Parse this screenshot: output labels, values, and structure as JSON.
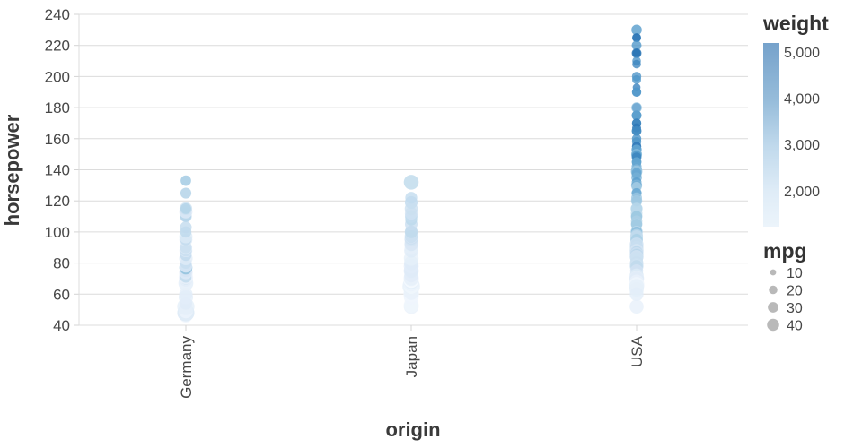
{
  "chart_data": {
    "type": "scatter",
    "title": "",
    "x": {
      "label": "origin",
      "categories": [
        "Germany",
        "Japan",
        "USA"
      ]
    },
    "y": {
      "label": "horsepower",
      "domain": [
        40,
        240
      ],
      "tick_step": 20,
      "tick_labels": [
        "40",
        "60",
        "80",
        "100",
        "120",
        "140",
        "160",
        "180",
        "200",
        "220",
        "240"
      ]
    },
    "color_legend": {
      "title": "weight",
      "tick_labels": [
        "5,000",
        "4,000",
        "3,000",
        "2,000"
      ],
      "tick_values": [
        5000,
        4000,
        3000,
        2000
      ],
      "gradient_top_color": "#76a2cb",
      "gradient_stops": [
        {
          "t": 0.0,
          "color": "#76a2cb"
        },
        {
          "t": 0.31,
          "color": "#96bcda"
        },
        {
          "t": 0.56,
          "color": "#c0d9ec"
        },
        {
          "t": 0.81,
          "color": "#dfecf7"
        },
        {
          "t": 1.0,
          "color": "#ecf4fb"
        }
      ],
      "domain": [
        1600,
        5150
      ]
    },
    "size_legend": {
      "title": "mpg",
      "values": [
        10,
        20,
        30,
        40
      ],
      "labels": [
        "10",
        "20",
        "30",
        "40"
      ],
      "circle_color": "#b9b9b9"
    },
    "point_style": {
      "color_stops": [
        "#f7fbff",
        "#d6e5f4",
        "#9ec9e2",
        "#539bcc",
        "#1b67ad"
      ],
      "opacity": 0.78,
      "grid_color": "#dcdcdc",
      "label_color": "#474747",
      "title_color": "#3a3a3a"
    },
    "points": {
      "Germany": [
        [
          46,
          1835,
          26
        ],
        [
          48,
          1978,
          43.1
        ],
        [
          48,
          2335,
          43.4
        ],
        [
          49,
          1867,
          29
        ],
        [
          52,
          2130,
          44.3
        ],
        [
          54,
          2254,
          23
        ],
        [
          58,
          2155,
          30.5
        ],
        [
          60,
          2164,
          26.5
        ],
        [
          67,
          1963,
          31.5
        ],
        [
          67,
          2050,
          33
        ],
        [
          69,
          2189,
          24
        ],
        [
          70,
          2120,
          29.5
        ],
        [
          70,
          2937,
          20.3
        ],
        [
          71,
          1825,
          31
        ],
        [
          71,
          2868,
          19
        ],
        [
          74,
          2246,
          27.2
        ],
        [
          75,
          2542,
          22.3
        ],
        [
          76,
          2511,
          22
        ],
        [
          76,
          3160,
          17
        ],
        [
          77,
          3530,
          25.4
        ],
        [
          78,
          2188,
          24.5
        ],
        [
          78,
          2515,
          21.5
        ],
        [
          80,
          2720,
          19.4
        ],
        [
          83,
          2219,
          27
        ],
        [
          85,
          2855,
          19
        ],
        [
          88,
          2160,
          25
        ],
        [
          88,
          2740,
          21
        ],
        [
          90,
          2123,
          24
        ],
        [
          90,
          2711,
          20.3
        ],
        [
          95,
          2375,
          25
        ],
        [
          95,
          2833,
          18.5
        ],
        [
          97,
          2300,
          26
        ],
        [
          100,
          2901,
          18.5
        ],
        [
          103,
          2830,
          20.3
        ],
        [
          110,
          2600,
          21.5
        ],
        [
          110,
          3100,
          18
        ],
        [
          112,
          2933,
          19
        ],
        [
          113,
          2234,
          26
        ],
        [
          115,
          2671,
          23.9
        ],
        [
          115,
          3090,
          17
        ],
        [
          125,
          3140,
          17.6
        ],
        [
          133,
          3410,
          16.2
        ]
      ],
      "Japan": [
        [
          52,
          1985,
          32.8
        ],
        [
          53,
          1795,
          33
        ],
        [
          58,
          1836,
          32
        ],
        [
          60,
          1800,
          36.1
        ],
        [
          61,
          2003,
          32
        ],
        [
          65,
          1975,
          46.6
        ],
        [
          65,
          2019,
          36
        ],
        [
          65,
          1773,
          33
        ],
        [
          67,
          1965,
          38
        ],
        [
          67,
          2145,
          32
        ],
        [
          67,
          1850,
          33.5
        ],
        [
          68,
          2135,
          31.8
        ],
        [
          69,
          1613,
          35.1
        ],
        [
          70,
          1945,
          33.5
        ],
        [
          70,
          2074,
          29
        ],
        [
          71,
          1990,
          31.9
        ],
        [
          72,
          2189,
          28
        ],
        [
          75,
          2155,
          33.5
        ],
        [
          75,
          2171,
          29.5
        ],
        [
          75,
          2265,
          28
        ],
        [
          78,
          2190,
          32.8
        ],
        [
          80,
          2263,
          30
        ],
        [
          83,
          2075,
          32
        ],
        [
          88,
          2279,
          29
        ],
        [
          90,
          2123,
          26
        ],
        [
          92,
          2288,
          27.2
        ],
        [
          92,
          2434,
          24.2
        ],
        [
          93,
          2391,
          25.4
        ],
        [
          95,
          2228,
          25
        ],
        [
          95,
          2372,
          24
        ],
        [
          95,
          2515,
          26
        ],
        [
          96,
          2665,
          25.8
        ],
        [
          97,
          2190,
          27
        ],
        [
          97,
          2720,
          23.9
        ],
        [
          100,
          2615,
          25
        ],
        [
          100,
          2870,
          23
        ],
        [
          105,
          2745,
          23.2
        ],
        [
          108,
          2910,
          21.5
        ],
        [
          110,
          2660,
          23
        ],
        [
          110,
          2807,
          21
        ],
        [
          112,
          2605,
          24
        ],
        [
          115,
          2671,
          25
        ],
        [
          119,
          2615,
          22.5
        ],
        [
          119,
          2720,
          23.9
        ],
        [
          122,
          2807,
          21
        ],
        [
          132,
          2910,
          32.7
        ]
      ],
      "USA": [
        [
          230,
          4278,
          16
        ],
        [
          225,
          4425,
          12
        ],
        [
          225,
          4997,
          11
        ],
        [
          220,
          4354,
          14
        ],
        [
          215,
          4615,
          10
        ],
        [
          215,
          4735,
          11
        ],
        [
          215,
          4951,
          14
        ],
        [
          210,
          4382,
          11
        ],
        [
          208,
          4633,
          11
        ],
        [
          200,
          4376,
          13
        ],
        [
          198,
          4341,
          12
        ],
        [
          193,
          4732,
          9
        ],
        [
          190,
          4422,
          13
        ],
        [
          190,
          4325,
          12
        ],
        [
          180,
          4499,
          12.5
        ],
        [
          180,
          4955,
          12
        ],
        [
          180,
          3664,
          16
        ],
        [
          175,
          4385,
          13
        ],
        [
          175,
          4464,
          14
        ],
        [
          175,
          4100,
          14
        ],
        [
          170,
          4746,
          13
        ],
        [
          170,
          4668,
          12
        ],
        [
          167,
          4906,
          12
        ],
        [
          165,
          4274,
          13
        ],
        [
          165,
          4658,
          14
        ],
        [
          160,
          4456,
          13
        ],
        [
          158,
          4363,
          13
        ],
        [
          155,
          4502,
          12.5
        ],
        [
          155,
          4840,
          13
        ],
        [
          153,
          4034,
          14
        ],
        [
          153,
          4129,
          15
        ],
        [
          150,
          4997,
          14
        ],
        [
          150,
          4464,
          13
        ],
        [
          150,
          4077,
          13
        ],
        [
          150,
          3777,
          14
        ],
        [
          150,
          4135,
          15
        ],
        [
          150,
          4096,
          13
        ],
        [
          150,
          3433,
          17.5
        ],
        [
          150,
          3892,
          15
        ],
        [
          149,
          4335,
          14
        ],
        [
          148,
          4657,
          14
        ],
        [
          145,
          4440,
          13
        ],
        [
          145,
          3988,
          14
        ],
        [
          145,
          4082,
          13
        ],
        [
          142,
          4054,
          14.5
        ],
        [
          140,
          4080,
          13
        ],
        [
          140,
          3449,
          17
        ],
        [
          140,
          4215,
          15
        ],
        [
          140,
          3735,
          16
        ],
        [
          139,
          3205,
          20.2
        ],
        [
          139,
          3570,
          17
        ],
        [
          138,
          4080,
          14
        ],
        [
          137,
          4042,
          14
        ],
        [
          135,
          3870,
          16
        ],
        [
          132,
          4209,
          14
        ],
        [
          130,
          3504,
          18
        ],
        [
          130,
          4098,
          15
        ],
        [
          130,
          3840,
          15
        ],
        [
          129,
          3169,
          15
        ],
        [
          125,
          3900,
          14
        ],
        [
          125,
          3988,
          15
        ],
        [
          122,
          3410,
          17
        ],
        [
          120,
          3820,
          15
        ],
        [
          120,
          3270,
          18.5
        ],
        [
          115,
          3245,
          19
        ],
        [
          115,
          2945,
          21
        ],
        [
          112,
          2933,
          19.5
        ],
        [
          110,
          3907,
          16.9
        ],
        [
          110,
          3730,
          17
        ],
        [
          110,
          3039,
          18.5
        ],
        [
          110,
          2725,
          20
        ],
        [
          110,
          3360,
          17.5
        ],
        [
          110,
          3381,
          18
        ],
        [
          107,
          3160,
          19
        ],
        [
          105,
          3613,
          16
        ],
        [
          105,
          3459,
          16
        ],
        [
          105,
          2945,
          20
        ],
        [
          105,
          3380,
          17.6
        ],
        [
          100,
          3288,
          18
        ],
        [
          100,
          3282,
          19
        ],
        [
          100,
          2789,
          22
        ],
        [
          100,
          3012,
          20.5
        ],
        [
          100,
          3336,
          19
        ],
        [
          100,
          2901,
          21
        ],
        [
          100,
          3651,
          17.5
        ],
        [
          98,
          2945,
          22
        ],
        [
          97,
          2774,
          24
        ],
        [
          95,
          3155,
          18.2
        ],
        [
          95,
          2945,
          22.5
        ],
        [
          95,
          2875,
          23
        ],
        [
          95,
          3193,
          20.2
        ],
        [
          94,
          3102,
          19.8
        ],
        [
          92,
          3288,
          21
        ],
        [
          92,
          2605,
          28
        ],
        [
          90,
          3211,
          21
        ],
        [
          90,
          2950,
          24.5
        ],
        [
          90,
          2957,
          22
        ],
        [
          90,
          3003,
          20.6
        ],
        [
          90,
          2678,
          26.8
        ],
        [
          90,
          2711,
          24.3
        ],
        [
          88,
          3060,
          21
        ],
        [
          88,
          2890,
          22
        ],
        [
          88,
          2720,
          25.1
        ],
        [
          88,
          2605,
          28.1
        ],
        [
          88,
          2640,
          27
        ],
        [
          88,
          3021,
          20
        ],
        [
          88,
          2451,
          26
        ],
        [
          87,
          2979,
          21
        ],
        [
          86,
          2790,
          27
        ],
        [
          86,
          2587,
          24
        ],
        [
          85,
          2855,
          27
        ],
        [
          85,
          3070,
          21.1
        ],
        [
          85,
          2965,
          20.5
        ],
        [
          84,
          2490,
          26.6
        ],
        [
          84,
          2635,
          28
        ],
        [
          83,
          2639,
          23.8
        ],
        [
          80,
          2720,
          24
        ],
        [
          80,
          2678,
          27
        ],
        [
          79,
          2625,
          26
        ],
        [
          78,
          2592,
          28
        ],
        [
          78,
          2875,
          22
        ],
        [
          75,
          2542,
          25
        ],
        [
          72,
          2408,
          26
        ],
        [
          72,
          2298,
          29
        ],
        [
          70,
          2120,
          28
        ],
        [
          70,
          2200,
          31
        ],
        [
          70,
          1955,
          33.5
        ],
        [
          70,
          2245,
          30
        ],
        [
          68,
          1985,
          30
        ],
        [
          66,
          1800,
          36.1
        ],
        [
          65,
          2045,
          32
        ],
        [
          65,
          2020,
          31.5
        ],
        [
          63,
          2051,
          30.5
        ],
        [
          60,
          2164,
          28
        ],
        [
          52,
          2035,
          29
        ]
      ]
    }
  }
}
